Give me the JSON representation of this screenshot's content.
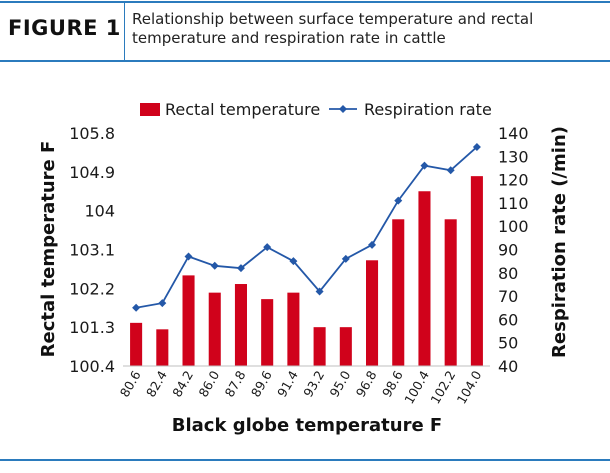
{
  "figure": {
    "label": "FIGURE 1",
    "title": "Relationship between surface temperature and rectal temperature and respiration rate in cattle"
  },
  "colors": {
    "accent": "#2b7bbd",
    "bar": "#d0021b",
    "line": "#2458a8"
  },
  "chart_data": {
    "type": "bar",
    "title": "",
    "xlabel": "Black globe temperature F",
    "ylabel": "Rectal temperature F",
    "y2label": "Respiration rate (/min)",
    "legend_placement": "top",
    "grid": false,
    "categories": [
      "80.6",
      "82.4",
      "84.2",
      "86.0",
      "87.8",
      "89.6",
      "91.4",
      "93.2",
      "95.0",
      "96.8",
      "98.6",
      "100.4",
      "102.2",
      "104.0"
    ],
    "ylim": [
      100.4,
      105.8
    ],
    "yticks": [
      "100.4",
      "101.3",
      "102.2",
      "103.1",
      "104",
      "104.9",
      "105.8"
    ],
    "y2lim": [
      40,
      140
    ],
    "y2ticks": [
      "40",
      "50",
      "60",
      "70",
      "80",
      "90",
      "100",
      "110",
      "120",
      "130",
      "140"
    ],
    "series": [
      {
        "name": "Rectal temperature",
        "type": "bar",
        "axis": "left",
        "values": [
          101.4,
          101.25,
          102.5,
          102.1,
          102.3,
          101.95,
          102.1,
          101.3,
          101.3,
          102.85,
          103.8,
          104.45,
          103.8,
          104.8
        ]
      },
      {
        "name": "Respiration rate",
        "type": "line",
        "axis": "right",
        "values": [
          65,
          67,
          87,
          83,
          82,
          91,
          85,
          72,
          86,
          92,
          111,
          126,
          124,
          134
        ]
      }
    ]
  }
}
